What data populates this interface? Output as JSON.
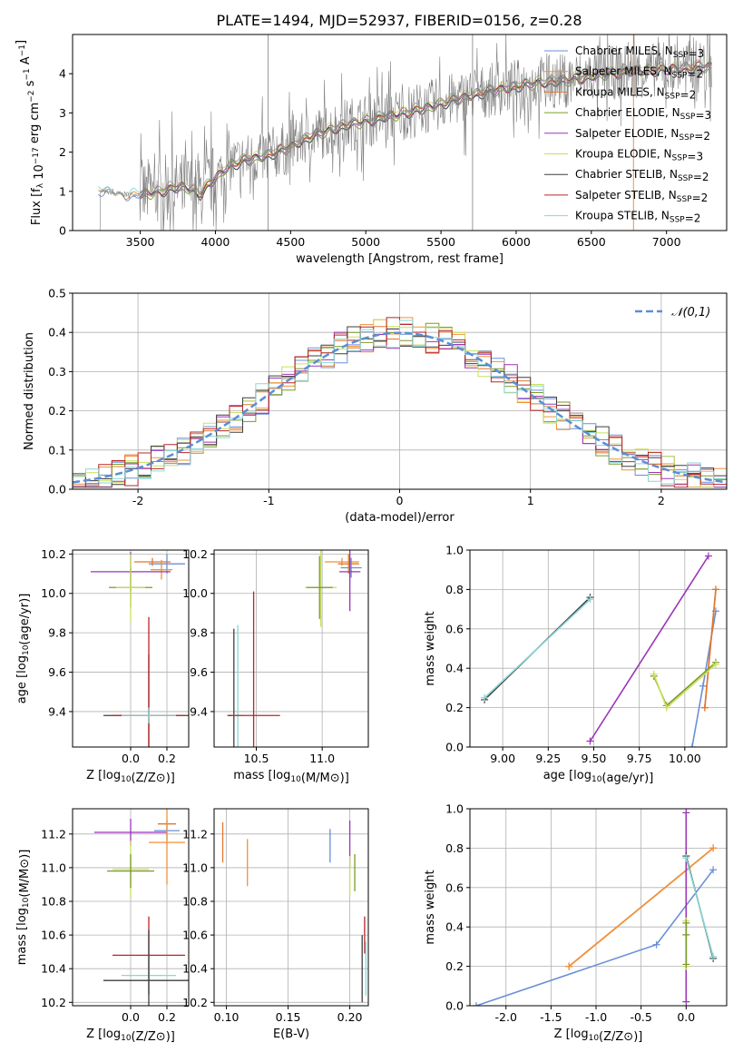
{
  "figure": {
    "title": "PLATE=1494, MJD=52937, FIBERID=0156, z=0.28"
  },
  "colors": {
    "Chabrier MILES": "#6a8fd8",
    "Salpeter MILES": "#f0903a",
    "Kroupa MILES": "#e2762f",
    "Chabrier ELODIE": "#7a9a2a",
    "Salpeter ELODIE": "#9a35b8",
    "Kroupa ELODIE": "#c8e05a",
    "Chabrier STELIB": "#3f3f3f",
    "Salpeter STELIB": "#b8262a",
    "Kroupa STELIB": "#8ad6d6",
    "data": "#808080",
    "normal": "#5b8ed6"
  },
  "chart_data": [
    {
      "id": "spectrum",
      "type": "line",
      "xlabel": "wavelength [Angstrom, rest frame]",
      "ylabel": "Flux [f_λ 10^-17 erg cm^-2 s^-1 A^-1]",
      "xlim": [
        3050,
        7400
      ],
      "ylim": [
        0,
        5
      ],
      "xticks": [
        3500,
        4000,
        4500,
        5000,
        5500,
        6000,
        6500,
        7000
      ],
      "yticks": [
        0,
        1,
        2,
        3,
        4
      ],
      "grid": false,
      "legend_position": "top-right",
      "series": [
        {
          "name": "Chabrier MILES, N_SSP=3"
        },
        {
          "name": "Salpeter MILES, N_SSP=2"
        },
        {
          "name": "Kroupa MILES, N_SSP=2"
        },
        {
          "name": "Chabrier ELODIE, N_SSP=3"
        },
        {
          "name": "Salpeter ELODIE, N_SSP=2"
        },
        {
          "name": "Kroupa ELODIE, N_SSP=3"
        },
        {
          "name": "Chabrier STELIB, N_SSP=2"
        },
        {
          "name": "Salpeter STELIB, N_SSP=2"
        },
        {
          "name": "Kroupa STELIB, N_SSP=2"
        }
      ],
      "model_continuum": {
        "x": [
          3220,
          3300,
          3400,
          3500,
          3600,
          3700,
          3800,
          3900,
          4000,
          4100,
          4200,
          4300,
          4400,
          4500,
          4600,
          4700,
          4800,
          4900,
          5000,
          5100,
          5200,
          5300,
          5400,
          5500,
          5600,
          5700,
          5800,
          5900,
          6000,
          6100,
          6200,
          6300,
          6400,
          6500,
          6600,
          6700,
          6800,
          6900,
          7000,
          7100,
          7200,
          7300
        ],
        "y": [
          1.0,
          0.97,
          0.93,
          0.92,
          0.98,
          1.08,
          1.12,
          0.95,
          1.35,
          1.68,
          1.8,
          1.88,
          2.0,
          2.15,
          2.35,
          2.5,
          2.62,
          2.72,
          2.8,
          2.88,
          2.95,
          3.05,
          3.12,
          3.25,
          3.35,
          3.45,
          3.55,
          3.62,
          3.68,
          3.75,
          3.8,
          3.82,
          3.88,
          3.95,
          4.0,
          4.05,
          4.08,
          4.1,
          4.12,
          4.15,
          4.18,
          4.2
        ]
      }
    },
    {
      "id": "residuals",
      "type": "line",
      "xlabel": "(data-model)/error",
      "ylabel": "Normed distribution",
      "xlim": [
        -2.5,
        2.5
      ],
      "ylim": [
        0,
        0.5
      ],
      "xticks": [
        -2,
        -1,
        0,
        1,
        2
      ],
      "yticks": [
        0.0,
        0.1,
        0.2,
        0.3,
        0.4,
        0.5
      ],
      "grid": true,
      "legend_position": "top-right",
      "legend": "𝒩(0,1)",
      "normal_curve": {
        "mean": 0,
        "sigma": 1
      }
    },
    {
      "id": "age-vs-Z",
      "type": "scatter",
      "xlabel": "Z [log10(Z/Z⊙)]",
      "ylabel": "age  [log10(age/yr)]",
      "xlim": [
        -0.32,
        0.32
      ],
      "ylim": [
        9.22,
        10.22
      ],
      "xticks": [
        0.0,
        0.2
      ],
      "yticks": [
        9.4,
        9.6,
        9.8,
        10.0,
        10.2
      ],
      "grid": true,
      "errorbars": [
        {
          "model": "Chabrier MILES",
          "x": 0.2,
          "y": 10.15,
          "dx": 0.1,
          "dy": 0.05
        },
        {
          "model": "Kroupa MILES",
          "x": 0.12,
          "y": 10.16,
          "dx": 0.1,
          "dy": 0.02
        },
        {
          "model": "Salpeter MILES",
          "x": 0.17,
          "y": 10.12,
          "dx": 0.06,
          "dy": 0.05
        },
        {
          "model": "Salpeter ELODIE",
          "x": 0.0,
          "y": 10.11,
          "dx": 0.22,
          "dy": 0.1
        },
        {
          "model": "Chabrier ELODIE",
          "x": 0.0,
          "y": 10.03,
          "dx": 0.12,
          "dy": 0.1
        },
        {
          "model": "Kroupa ELODIE",
          "x": 0.0,
          "y": 10.03,
          "dx": 0.08,
          "dy": 0.17
        },
        {
          "model": "Chabrier STELIB",
          "x": 0.1,
          "y": 9.38,
          "dx": 0.25,
          "dy": 0.31
        },
        {
          "model": "Salpeter STELIB",
          "x": 0.1,
          "y": 9.38,
          "dx": 0.2,
          "dy": 0.5
        },
        {
          "model": "Kroupa STELIB",
          "x": 0.1,
          "y": 9.38,
          "dx": 0.15,
          "dy": 0.04
        }
      ]
    },
    {
      "id": "age-vs-mass",
      "type": "scatter",
      "xlabel": "mass [log10(M/M⊙)]",
      "ylabel": "",
      "xlim": [
        10.18,
        11.35
      ],
      "ylim": [
        9.22,
        10.22
      ],
      "xticks": [
        10.5,
        11.0
      ],
      "yticks": [
        9.4,
        9.6,
        9.8,
        10.0,
        10.2
      ],
      "grid": true,
      "errorbars": [
        {
          "model": "Salpeter MILES",
          "x": 11.15,
          "y": 10.16,
          "dx": 0.13,
          "dy": 0.02
        },
        {
          "model": "Kroupa MILES",
          "x": 11.2,
          "y": 10.15,
          "dx": 0.08,
          "dy": 0.05
        },
        {
          "model": "Chabrier MILES",
          "x": 11.22,
          "y": 10.13,
          "dx": 0.08,
          "dy": 0.05
        },
        {
          "model": "Salpeter ELODIE",
          "x": 11.21,
          "y": 10.11,
          "dx": 0.08,
          "dy": 0.2
        },
        {
          "model": "Kroupa ELODIE",
          "x": 10.99,
          "y": 10.03,
          "dx": 0.12,
          "dy": 0.2
        },
        {
          "model": "Chabrier ELODIE",
          "x": 10.98,
          "y": 10.03,
          "dx": 0.1,
          "dy": 0.16
        },
        {
          "model": "Chabrier STELIB",
          "x": 10.33,
          "y": 9.38,
          "dx": 0.04,
          "dy": 0.44
        },
        {
          "model": "Kroupa STELIB",
          "x": 10.36,
          "y": 9.38,
          "dx": 0.04,
          "dy": 0.46
        },
        {
          "model": "Salpeter STELIB",
          "x": 10.48,
          "y": 9.38,
          "dx": 0.2,
          "dy": 0.63
        }
      ]
    },
    {
      "id": "mass-weight-vs-age",
      "type": "line",
      "xlabel": "age  [log10(age/yr)]",
      "ylabel": "mass weight",
      "xlim": [
        8.82,
        10.23
      ],
      "ylim": [
        0,
        1
      ],
      "xticks": [
        9.0,
        9.25,
        9.5,
        9.75,
        10.0
      ],
      "yticks": [
        0.0,
        0.2,
        0.4,
        0.6,
        0.8,
        1.0
      ],
      "grid": true,
      "series": [
        {
          "model": "Chabrier MILES",
          "x": [
            10.04,
            10.1,
            10.17
          ],
          "y": [
            0.0,
            0.31,
            0.69
          ]
        },
        {
          "model": "Salpeter MILES",
          "x": [
            10.11,
            10.17
          ],
          "y": [
            0.2,
            0.8
          ]
        },
        {
          "model": "Kroupa MILES",
          "x": [
            10.11,
            10.17
          ],
          "y": [
            0.2,
            0.8
          ]
        },
        {
          "model": "Chabrier ELODIE",
          "x": [
            9.83,
            9.9,
            10.17
          ],
          "y": [
            0.36,
            0.21,
            0.43
          ]
        },
        {
          "model": "Salpeter ELODIE",
          "x": [
            9.48,
            10.13
          ],
          "y": [
            0.03,
            0.97
          ]
        },
        {
          "model": "Kroupa ELODIE",
          "x": [
            9.83,
            9.9,
            10.17
          ],
          "y": [
            0.37,
            0.2,
            0.42
          ]
        },
        {
          "model": "Chabrier STELIB",
          "x": [
            8.9,
            9.48
          ],
          "y": [
            0.24,
            0.76
          ]
        },
        {
          "model": "Kroupa STELIB",
          "x": [
            8.9,
            9.48
          ],
          "y": [
            0.25,
            0.75
          ]
        }
      ]
    },
    {
      "id": "mass-vs-Z",
      "type": "scatter",
      "xlabel": "Z [log10(Z/Z⊙)]",
      "ylabel": "mass [log10(M/M⊙)]",
      "xlim": [
        -0.32,
        0.32
      ],
      "ylim": [
        10.18,
        11.35
      ],
      "xticks": [
        0.0,
        0.2
      ],
      "yticks": [
        10.2,
        10.4,
        10.6,
        10.8,
        11.0,
        11.2
      ],
      "grid": true,
      "errorbars": [
        {
          "model": "Kroupa MILES",
          "x": 0.2,
          "y": 11.26,
          "dx": 0.05,
          "dy": 0.0
        },
        {
          "model": "Chabrier MILES",
          "x": 0.2,
          "y": 11.22,
          "dx": 0.07,
          "dy": 0.06
        },
        {
          "model": "Salpeter ELODIE",
          "x": 0.0,
          "y": 11.21,
          "dx": 0.2,
          "dy": 0.08
        },
        {
          "model": "Salpeter MILES",
          "x": 0.2,
          "y": 11.15,
          "dx": 0.1,
          "dy": 0.25
        },
        {
          "model": "Kroupa ELODIE",
          "x": 0.0,
          "y": 10.99,
          "dx": 0.1,
          "dy": 0.17
        },
        {
          "model": "Chabrier ELODIE",
          "x": 0.0,
          "y": 10.98,
          "dx": 0.13,
          "dy": 0.1
        },
        {
          "model": "Salpeter STELIB",
          "x": 0.1,
          "y": 10.48,
          "dx": 0.2,
          "dy": 0.23
        },
        {
          "model": "Kroupa STELIB",
          "x": 0.1,
          "y": 10.36,
          "dx": 0.15,
          "dy": 0.12
        },
        {
          "model": "Chabrier STELIB",
          "x": 0.1,
          "y": 10.33,
          "dx": 0.25,
          "dy": 0.3
        }
      ]
    },
    {
      "id": "mass-vs-EBV",
      "type": "scatter",
      "xlabel": "E(B-V)",
      "ylabel": "",
      "xlim": [
        0.09,
        0.215
      ],
      "ylim": [
        10.18,
        11.35
      ],
      "xticks": [
        0.1,
        0.15,
        0.2
      ],
      "yticks": [
        10.2,
        10.4,
        10.6,
        10.8,
        11.0,
        11.2
      ],
      "grid": true,
      "errorbars": [
        {
          "model": "Kroupa MILES",
          "x": 0.097,
          "y": 11.15,
          "dx": 0,
          "dy": 0.12
        },
        {
          "model": "Salpeter MILES",
          "x": 0.117,
          "y": 11.03,
          "dx": 0,
          "dy": 0.14
        },
        {
          "model": "Chabrier MILES",
          "x": 0.184,
          "y": 11.13,
          "dx": 0,
          "dy": 0.1
        },
        {
          "model": "Salpeter ELODIE",
          "x": 0.2,
          "y": 11.14,
          "dx": 0,
          "dy": 0.14
        },
        {
          "model": "Kroupa ELODIE",
          "x": 0.2,
          "y": 10.95,
          "dx": 0,
          "dy": 0.12
        },
        {
          "model": "Chabrier ELODIE",
          "x": 0.204,
          "y": 10.97,
          "dx": 0,
          "dy": 0.11
        },
        {
          "model": "Salpeter STELIB",
          "x": 0.212,
          "y": 10.6,
          "dx": 0,
          "dy": 0.11
        },
        {
          "model": "Chabrier STELIB",
          "x": 0.21,
          "y": 10.4,
          "dx": 0,
          "dy": 0.2
        },
        {
          "model": "Kroupa STELIB",
          "x": 0.213,
          "y": 10.4,
          "dx": 0,
          "dy": 0.16
        }
      ]
    },
    {
      "id": "mass-weight-vs-Z",
      "type": "line",
      "xlabel": "Z [log10(Z/Z⊙)]",
      "ylabel": "mass weight",
      "xlim": [
        -2.4,
        0.45
      ],
      "ylim": [
        0,
        1
      ],
      "xticks": [
        -2.0,
        -1.5,
        -1.0,
        -0.5,
        0.0
      ],
      "yticks": [
        0.0,
        0.2,
        0.4,
        0.6,
        0.8,
        1.0
      ],
      "grid": true,
      "series": [
        {
          "model": "Chabrier MILES",
          "x": [
            -2.33,
            -0.33,
            0.3
          ],
          "y": [
            0.0,
            0.31,
            0.69
          ]
        },
        {
          "model": "Kroupa MILES",
          "x": [
            -1.3,
            0.3
          ],
          "y": [
            0.2,
            0.8
          ]
        },
        {
          "model": "Salpeter MILES",
          "x": [
            -1.3,
            0.3
          ],
          "y": [
            0.2,
            0.8
          ]
        },
        {
          "model": "Salpeter ELODIE",
          "x": [
            0.0,
            0.0
          ],
          "y": [
            0.02,
            0.98
          ]
        },
        {
          "model": "Kroupa ELODIE",
          "x": [
            0.0,
            0.0,
            0.0
          ],
          "y": [
            0.2,
            0.36,
            0.43
          ]
        },
        {
          "model": "Chabrier ELODIE",
          "x": [
            0.0,
            0.0,
            0.0
          ],
          "y": [
            0.21,
            0.36,
            0.42
          ]
        },
        {
          "model": "Chabrier STELIB",
          "x": [
            0.0,
            0.3
          ],
          "y": [
            0.76,
            0.24
          ]
        },
        {
          "model": "Kroupa STELIB",
          "x": [
            0.0,
            0.3
          ],
          "y": [
            0.75,
            0.25
          ]
        }
      ]
    }
  ]
}
